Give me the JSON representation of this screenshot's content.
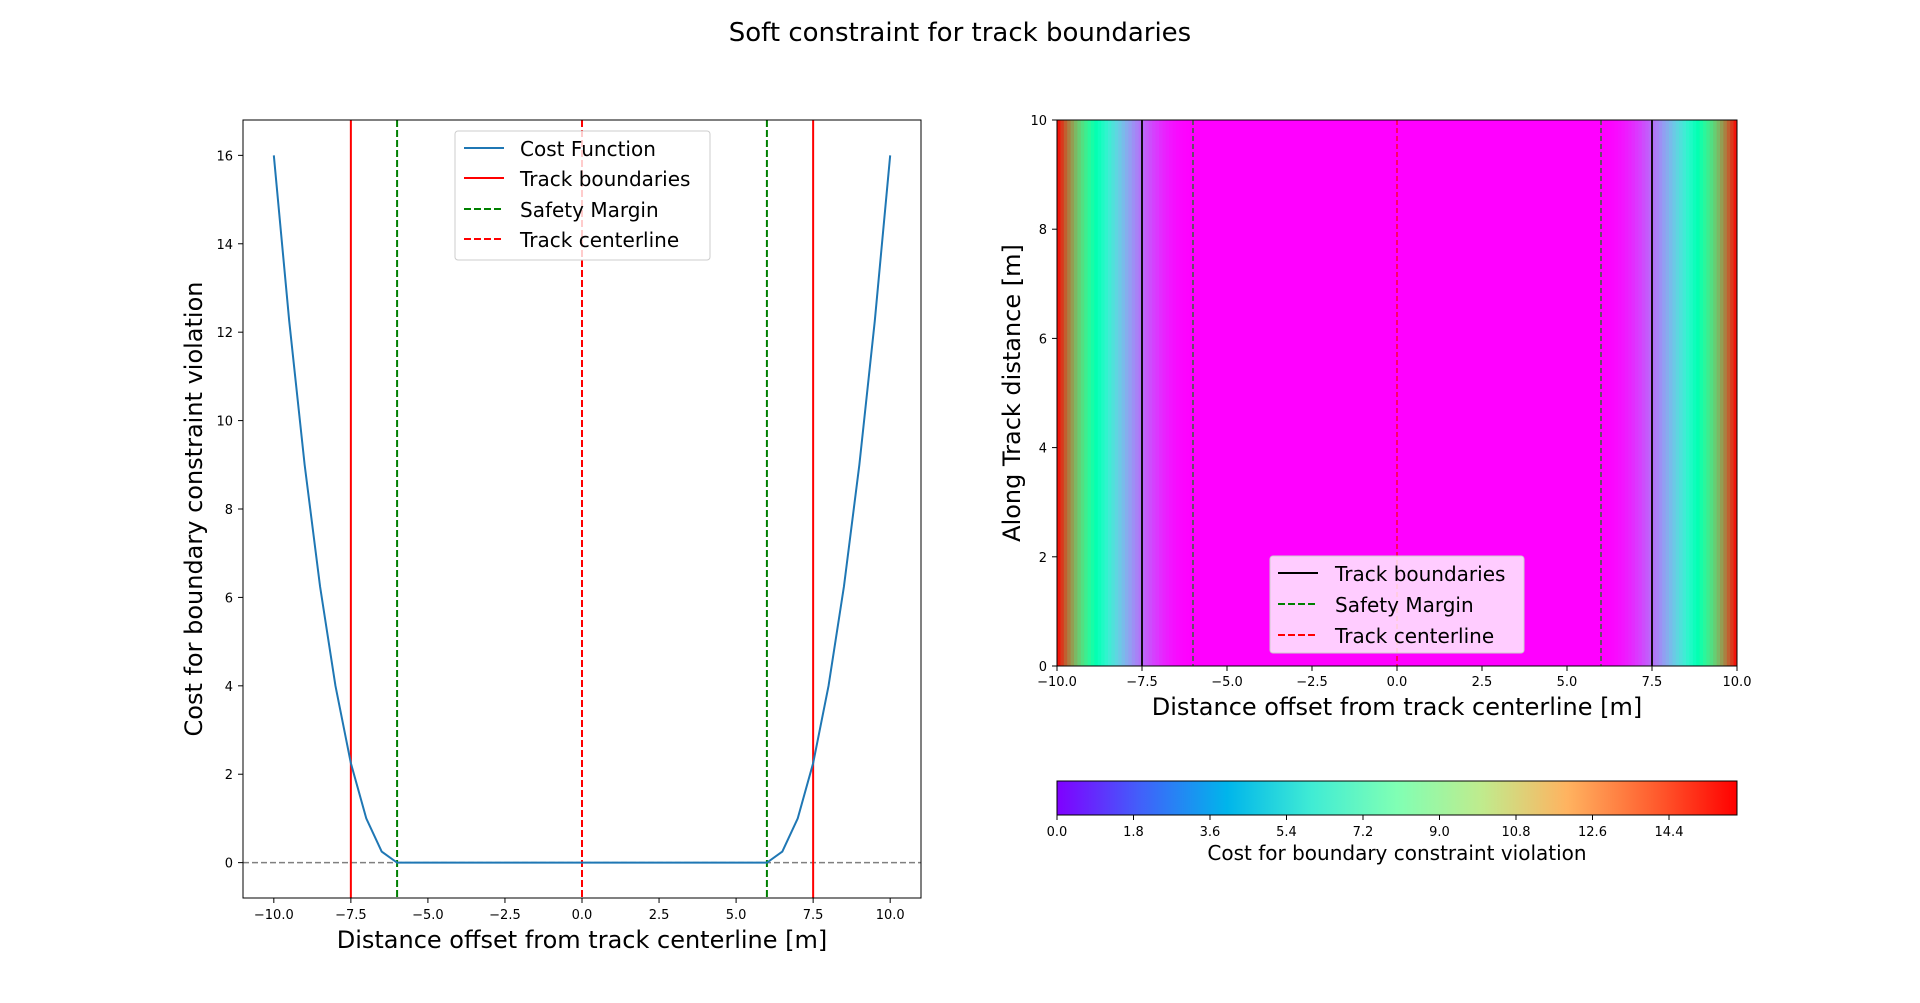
{
  "figure": {
    "title": "Soft constraint for track boundaries"
  },
  "chart_data": [
    {
      "type": "line",
      "xlabel": "Distance offset from track centerline [m]",
      "ylabel": "Cost for boundary constraint violation",
      "xlim": [
        -11,
        11
      ],
      "ylim": [
        -0.8,
        16.8
      ],
      "xticks": [
        "−10.0",
        "−7.5",
        "−5.0",
        "−2.5",
        "0.0",
        "2.5",
        "5.0",
        "7.5",
        "10.0"
      ],
      "xtick_values": [
        -10,
        -7.5,
        -5,
        -2.5,
        0,
        2.5,
        5,
        7.5,
        10
      ],
      "yticks": [
        "0",
        "2",
        "4",
        "6",
        "8",
        "10",
        "12",
        "14",
        "16"
      ],
      "ytick_values": [
        0,
        2,
        4,
        6,
        8,
        10,
        12,
        14,
        16
      ],
      "grid": false,
      "legend_position": "top-center",
      "series": [
        {
          "name": "Cost Function",
          "color": "#1f77b4",
          "x": [
            -10,
            -9.5,
            -9,
            -8.5,
            -8,
            -7.5,
            -7,
            -6.5,
            -6,
            -5,
            0,
            5,
            6,
            6.5,
            7,
            7.5,
            8,
            8.5,
            9,
            9.5,
            10
          ],
          "y": [
            16,
            12.25,
            9,
            6.25,
            4,
            2.25,
            1,
            0.25,
            0,
            0,
            0,
            0,
            0,
            0.25,
            1,
            2.25,
            4,
            6.25,
            9,
            12.25,
            16
          ]
        }
      ],
      "vlines": [
        {
          "name": "Track boundaries",
          "x": [
            -7.5,
            7.5
          ],
          "color": "#ff0000",
          "style": "solid"
        },
        {
          "name": "Safety Margin",
          "x": [
            -6,
            6
          ],
          "color": "#008000",
          "style": "dashed"
        },
        {
          "name": "Track centerline",
          "x": [
            0
          ],
          "color": "#ff0000",
          "style": "dashed"
        }
      ],
      "hline": {
        "y": 0,
        "color": "#808080",
        "style": "dashed"
      },
      "legend": [
        {
          "label": "Cost Function",
          "color": "#1f77b4",
          "style": "solid"
        },
        {
          "label": "Track boundaries",
          "color": "#ff0000",
          "style": "solid"
        },
        {
          "label": "Safety Margin",
          "color": "#008000",
          "style": "dashed"
        },
        {
          "label": "Track centerline",
          "color": "#ff0000",
          "style": "dashed"
        }
      ]
    },
    {
      "type": "heatmap",
      "xlabel": "Distance offset from track centerline [m]",
      "ylabel": "Along Track distance [m]",
      "xlim": [
        -10,
        10
      ],
      "ylim": [
        0,
        10
      ],
      "xticks": [
        "−10.0",
        "−7.5",
        "−5.0",
        "−2.5",
        "0.0",
        "2.5",
        "5.0",
        "7.5",
        "10.0"
      ],
      "xtick_values": [
        -10,
        -7.5,
        -5,
        -2.5,
        0,
        2.5,
        5,
        7.5,
        10
      ],
      "yticks": [
        "0",
        "2",
        "4",
        "6",
        "8",
        "10"
      ],
      "ytick_values": [
        0,
        2,
        4,
        6,
        8,
        10
      ],
      "colormap": "rainbow",
      "value_range": [
        0,
        16
      ],
      "vlines": [
        {
          "name": "Track boundaries",
          "x": [
            -7.5,
            7.5
          ],
          "color": "#000000",
          "style": "solid"
        },
        {
          "name": "Safety Margin",
          "x": [
            -6,
            6
          ],
          "color": "#008000",
          "style": "dashed"
        },
        {
          "name": "Track centerline",
          "x": [
            0
          ],
          "color": "#ff0000",
          "style": "dashed"
        }
      ],
      "legend_position": "lower-center",
      "legend": [
        {
          "label": "Track boundaries",
          "color": "#000000",
          "style": "solid"
        },
        {
          "label": "Safety Margin",
          "color": "#008000",
          "style": "dashed"
        },
        {
          "label": "Track centerline",
          "color": "#ff0000",
          "style": "dashed"
        }
      ],
      "colorbar": {
        "label": "Cost for boundary constraint violation",
        "ticks": [
          "0.0",
          "1.8",
          "3.6",
          "5.4",
          "7.2",
          "9.0",
          "10.8",
          "12.6",
          "14.4"
        ],
        "tick_values": [
          0,
          1.8,
          3.6,
          5.4,
          7.2,
          9.0,
          10.8,
          12.6,
          14.4
        ]
      }
    }
  ]
}
